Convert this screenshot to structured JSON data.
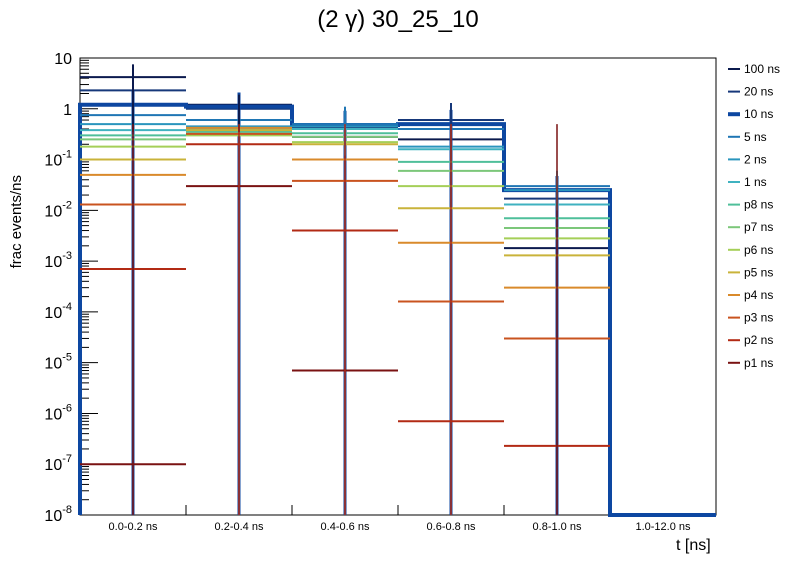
{
  "chart_data": {
    "type": "line",
    "title": "(2 γ) 30_25_10",
    "xlabel": "t [ns]",
    "ylabel": "frac events/ns",
    "yscale": "log",
    "ylim": [
      1e-08,
      10
    ],
    "categories": [
      "0.0-0.2 ns",
      "0.2-0.4 ns",
      "0.4-0.6 ns",
      "0.6-0.8 ns",
      "0.8-1.0 ns",
      "1.0-12.0 ns"
    ],
    "y_ticks": [
      {
        "base": "10",
        "exp": "-8"
      },
      {
        "base": "10",
        "exp": "-7"
      },
      {
        "base": "10",
        "exp": "-6"
      },
      {
        "base": "10",
        "exp": "-5"
      },
      {
        "base": "10",
        "exp": "-4"
      },
      {
        "base": "10",
        "exp": "-3"
      },
      {
        "base": "10",
        "exp": "-2"
      },
      {
        "base": "10",
        "exp": "-1"
      },
      {
        "base": "1",
        "exp": ""
      },
      {
        "base": "10",
        "exp": ""
      }
    ],
    "legend_position": "right",
    "series": [
      {
        "name": "100 ns",
        "color": "#0b1a4e",
        "values": [
          4.2,
          1.2,
          0.28,
          0.25,
          0.0018,
          0
        ]
      },
      {
        "name": "20 ns",
        "color": "#16387a",
        "values": [
          2.3,
          1.0,
          0.42,
          0.6,
          0.017,
          0
        ]
      },
      {
        "name": "10 ns",
        "color": "#0d47a1",
        "values": [
          1.2,
          1.1,
          0.48,
          0.5,
          0.025,
          1e-08
        ],
        "highlight": true
      },
      {
        "name": "5 ns",
        "color": "#1f76b4",
        "values": [
          0.75,
          0.6,
          0.5,
          0.4,
          0.03,
          0
        ]
      },
      {
        "name": "2 ns",
        "color": "#2a95bd",
        "values": [
          0.5,
          0.45,
          0.45,
          0.18,
          0.025,
          0
        ]
      },
      {
        "name": "1 ns",
        "color": "#3fb2c0",
        "values": [
          0.38,
          0.4,
          0.4,
          0.16,
          0.013,
          0
        ]
      },
      {
        "name": "p8 ns",
        "color": "#4fbf9a",
        "values": [
          0.3,
          0.35,
          0.33,
          0.09,
          0.007,
          0
        ]
      },
      {
        "name": "p7 ns",
        "color": "#7cc77a",
        "values": [
          0.25,
          0.32,
          0.28,
          0.06,
          0.0045,
          0
        ]
      },
      {
        "name": "p6 ns",
        "color": "#a5cf58",
        "values": [
          0.18,
          0.3,
          0.22,
          0.03,
          0.0028,
          0
        ]
      },
      {
        "name": "p5 ns",
        "color": "#c9b33a",
        "values": [
          0.1,
          0.38,
          0.2,
          0.011,
          0.0013,
          0
        ]
      },
      {
        "name": "p4 ns",
        "color": "#d98a2b",
        "values": [
          0.05,
          0.42,
          0.1,
          0.0023,
          0.0003,
          0
        ]
      },
      {
        "name": "p3 ns",
        "color": "#c9531f",
        "values": [
          0.013,
          0.32,
          0.038,
          0.00016,
          3e-05,
          0
        ]
      },
      {
        "name": "p2 ns",
        "color": "#b22a14",
        "values": [
          0.0007,
          0.2,
          0.004,
          7e-07,
          2.3e-07,
          0
        ]
      },
      {
        "name": "p1 ns",
        "color": "#7a1212",
        "values": [
          1e-07,
          0.03,
          7e-06,
          0,
          0,
          0
        ]
      }
    ]
  }
}
